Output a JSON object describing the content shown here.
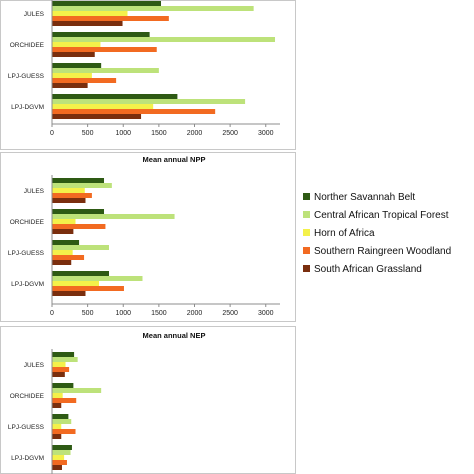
{
  "chart_data": [
    {
      "type": "bar",
      "orientation": "horizontal",
      "title": "",
      "categories": [
        "JULES",
        "ORCHIDEE",
        "LPJ-GUESS",
        "LPJ-DGVM"
      ],
      "xlim": [
        0,
        3200
      ],
      "xticks": [
        0,
        500,
        1000,
        1500,
        2000,
        2500,
        3000
      ],
      "series": [
        {
          "name": "Norther Savannah Belt",
          "values": [
            1530,
            1370,
            690,
            1760
          ]
        },
        {
          "name": "Central African Tropical Forest",
          "values": [
            2830,
            3130,
            1500,
            2710
          ]
        },
        {
          "name": "Horn of Africa",
          "values": [
            1060,
            680,
            560,
            1420
          ]
        },
        {
          "name": "Southern Raingreen Woodland",
          "values": [
            1640,
            1470,
            900,
            2290
          ]
        },
        {
          "name": "South African Grassland",
          "values": [
            990,
            600,
            500,
            1250
          ]
        }
      ]
    },
    {
      "type": "bar",
      "orientation": "horizontal",
      "title": "Mean annual NPP",
      "categories": [
        "JULES",
        "ORCHIDEE",
        "LPJ-GUESS",
        "LPJ-DGVM"
      ],
      "xlim": [
        0,
        3200
      ],
      "xticks": [
        0,
        500,
        1000,
        1500,
        2000,
        2500,
        3000
      ],
      "series": [
        {
          "name": "Norther Savannah Belt",
          "values": [
            730,
            730,
            380,
            800
          ]
        },
        {
          "name": "Central African Tropical Forest",
          "values": [
            840,
            1720,
            800,
            1270
          ]
        },
        {
          "name": "Horn of Africa",
          "values": [
            460,
            330,
            290,
            660
          ]
        },
        {
          "name": "Southern Raingreen Woodland",
          "values": [
            560,
            750,
            450,
            1010
          ]
        },
        {
          "name": "South African Grassland",
          "values": [
            470,
            300,
            270,
            470
          ]
        }
      ]
    },
    {
      "type": "bar",
      "orientation": "horizontal",
      "title": "Mean annual NEP",
      "categories": [
        "JULES",
        "ORCHIDEE",
        "LPJ-GUESS",
        "LPJ-DGVM"
      ],
      "xlim": [
        0,
        3200
      ],
      "series": [
        {
          "name": "Norther Savannah Belt",
          "values": [
            310,
            300,
            230,
            280
          ]
        },
        {
          "name": "Central African Tropical Forest",
          "values": [
            360,
            690,
            270,
            260
          ]
        },
        {
          "name": "Horn of Africa",
          "values": [
            190,
            150,
            130,
            170
          ]
        },
        {
          "name": "Southern Raingreen Woodland",
          "values": [
            240,
            340,
            330,
            210
          ]
        },
        {
          "name": "South African Grassland",
          "values": [
            180,
            130,
            130,
            140
          ]
        }
      ]
    }
  ],
  "legend": {
    "placement": "right",
    "items": [
      {
        "label": "Norther Savannah Belt",
        "color": "#2e5a14"
      },
      {
        "label": "Central African Tropical Forest",
        "color": "#bde27a"
      },
      {
        "label": "Horn of Africa",
        "color": "#f4f14a"
      },
      {
        "label": "Southern Raingreen Woodland",
        "color": "#f26a21"
      },
      {
        "label": "South African Grassland",
        "color": "#7a2e0e"
      }
    ]
  }
}
